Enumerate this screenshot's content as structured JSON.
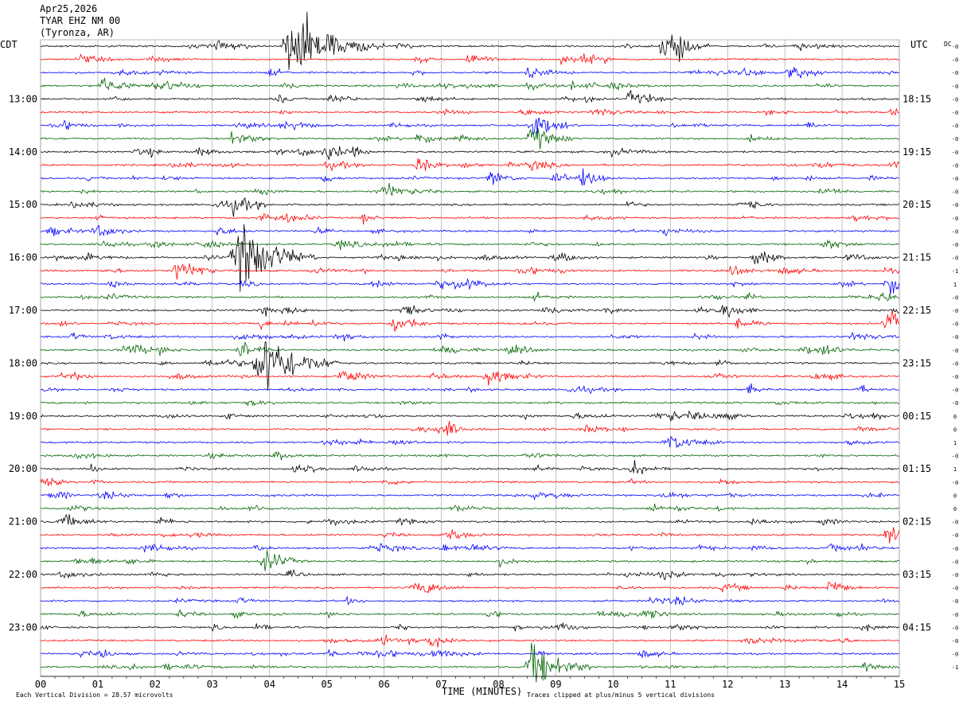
{
  "header": {
    "date": "Apr25,2026",
    "station": "TYAR EHZ NM 00",
    "location": "(Tyronza, AR)"
  },
  "labels": {
    "left_tz": "CDT",
    "right_tz": "UTC",
    "dc": "DC",
    "xlabel": "TIME (MINUTES)",
    "scale_note": "Each Vertical Division =   28.57 microvolts",
    "clip_note": "Traces clipped at plus/minus 5 vertical divisions"
  },
  "chart_data": {
    "type": "line",
    "title": "TYAR EHZ NM 00 (Tyronza, AR) Apr25,2026",
    "xlabel": "TIME (MINUTES)",
    "xlim": [
      0,
      15
    ],
    "x_ticks": [
      "00",
      "01",
      "02",
      "03",
      "04",
      "05",
      "06",
      "07",
      "08",
      "09",
      "10",
      "11",
      "12",
      "13",
      "14",
      "15"
    ],
    "rows_per_hour": 4,
    "trace_colors": [
      "#000000",
      "#ff0000",
      "#0000ff",
      "#006400"
    ],
    "left_hour_labels": [
      {
        "row": 4,
        "text": "13:00"
      },
      {
        "row": 8,
        "text": "14:00"
      },
      {
        "row": 12,
        "text": "15:00"
      },
      {
        "row": 16,
        "text": "16:00"
      },
      {
        "row": 20,
        "text": "17:00"
      },
      {
        "row": 24,
        "text": "18:00"
      },
      {
        "row": 28,
        "text": "19:00"
      },
      {
        "row": 32,
        "text": "20:00"
      },
      {
        "row": 36,
        "text": "21:00"
      },
      {
        "row": 40,
        "text": "22:00"
      },
      {
        "row": 44,
        "text": "23:00"
      }
    ],
    "right_hour_labels": [
      {
        "row": 4,
        "text": "18:15"
      },
      {
        "row": 8,
        "text": "19:15"
      },
      {
        "row": 12,
        "text": "20:15"
      },
      {
        "row": 16,
        "text": "21:15"
      },
      {
        "row": 20,
        "text": "22:15"
      },
      {
        "row": 24,
        "text": "23:15"
      },
      {
        "row": 28,
        "text": "00:15"
      },
      {
        "row": 32,
        "text": "01:15"
      },
      {
        "row": 36,
        "text": "02:15"
      },
      {
        "row": 40,
        "text": "03:15"
      },
      {
        "row": 44,
        "text": "04:15"
      }
    ],
    "dc_offsets": [
      "-0",
      "-0",
      "-0",
      "-0",
      "-0",
      "-0",
      "-0",
      "-0",
      "-0",
      "-0",
      "-0",
      "-0",
      "-0",
      "-0",
      "-0",
      "-0",
      "-0",
      "-1",
      "1",
      "-0",
      "-0",
      "-0",
      "-0",
      "-0",
      "-0",
      "-0",
      "-0",
      "-0",
      "0",
      "0",
      "1",
      "-0",
      "1",
      "-0",
      "0",
      "0",
      "-0",
      "-0",
      "-0",
      "-0",
      "-0",
      "-0",
      "-0",
      "-0",
      "-0",
      "-0",
      "-0",
      "-1"
    ],
    "events": [
      {
        "row": 0,
        "minute": 4.4,
        "amplitude": 5
      },
      {
        "row": 0,
        "minute": 10.9,
        "amplitude": 2.5
      },
      {
        "row": 1,
        "minute": 7.5,
        "amplitude": 1.2
      },
      {
        "row": 2,
        "minute": 13.1,
        "amplitude": 1.5
      },
      {
        "row": 3,
        "minute": 1.1,
        "amplitude": 1.6
      },
      {
        "row": 4,
        "minute": 10.3,
        "amplitude": 1.2
      },
      {
        "row": 6,
        "minute": 8.6,
        "amplitude": 1.8
      },
      {
        "row": 7,
        "minute": 8.6,
        "amplitude": 2.0
      },
      {
        "row": 8,
        "minute": 5.0,
        "amplitude": 1.3
      },
      {
        "row": 9,
        "minute": 6.6,
        "amplitude": 1.3
      },
      {
        "row": 10,
        "minute": 9.5,
        "amplitude": 1.6
      },
      {
        "row": 12,
        "minute": 3.4,
        "amplitude": 1.3
      },
      {
        "row": 16,
        "minute": 3.5,
        "amplitude": 5
      },
      {
        "row": 16,
        "minute": 12.5,
        "amplitude": 1.5
      },
      {
        "row": 17,
        "minute": 2.4,
        "amplitude": 1.8
      },
      {
        "row": 18,
        "minute": 14.8,
        "amplitude": 1.5
      },
      {
        "row": 20,
        "minute": 11.9,
        "amplitude": 1.6
      },
      {
        "row": 21,
        "minute": 6.2,
        "amplitude": 1.6
      },
      {
        "row": 21,
        "minute": 14.8,
        "amplitude": 2.0
      },
      {
        "row": 23,
        "minute": 3.5,
        "amplitude": 1.4
      },
      {
        "row": 24,
        "minute": 3.9,
        "amplitude": 5
      },
      {
        "row": 25,
        "minute": 7.8,
        "amplitude": 1.5
      },
      {
        "row": 37,
        "minute": 14.8,
        "amplitude": 1.2
      },
      {
        "row": 39,
        "minute": 3.9,
        "amplitude": 1.6
      },
      {
        "row": 41,
        "minute": 13.8,
        "amplitude": 1.4
      },
      {
        "row": 47,
        "minute": 8.6,
        "amplitude": 3.5
      }
    ]
  }
}
